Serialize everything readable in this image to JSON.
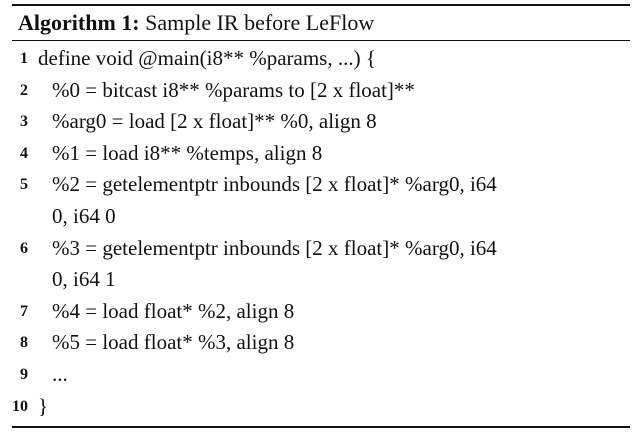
{
  "caption": {
    "label": "Algorithm 1:",
    "text": "Sample IR before LeFlow"
  },
  "lines": [
    {
      "num": "1",
      "text": "define void @main(i8** %params, ...) {",
      "indent": 0
    },
    {
      "num": "2",
      "text": "%0 = bitcast i8** %params to [2 x float]**",
      "indent": 1
    },
    {
      "num": "3",
      "text": "%arg0 = load [2 x float]** %0, align 8",
      "indent": 1
    },
    {
      "num": "4",
      "text": "%1 = load i8** %temps, align 8",
      "indent": 1
    },
    {
      "num": "5",
      "text": "%2 = getelementptr inbounds [2 x float]* %arg0, i64",
      "cont": "0, i64 0",
      "indent": 1
    },
    {
      "num": "6",
      "text": "%3 = getelementptr inbounds [2 x float]* %arg0, i64",
      "cont": "0, i64 1",
      "indent": 1
    },
    {
      "num": "7",
      "text": "%4 = load float* %2, align 8",
      "indent": 1
    },
    {
      "num": "8",
      "text": "%5 = load float* %3, align 8",
      "indent": 1
    },
    {
      "num": "9",
      "text": "...",
      "indent": 1
    },
    {
      "num": "10",
      "text": "}",
      "indent": 0
    }
  ]
}
